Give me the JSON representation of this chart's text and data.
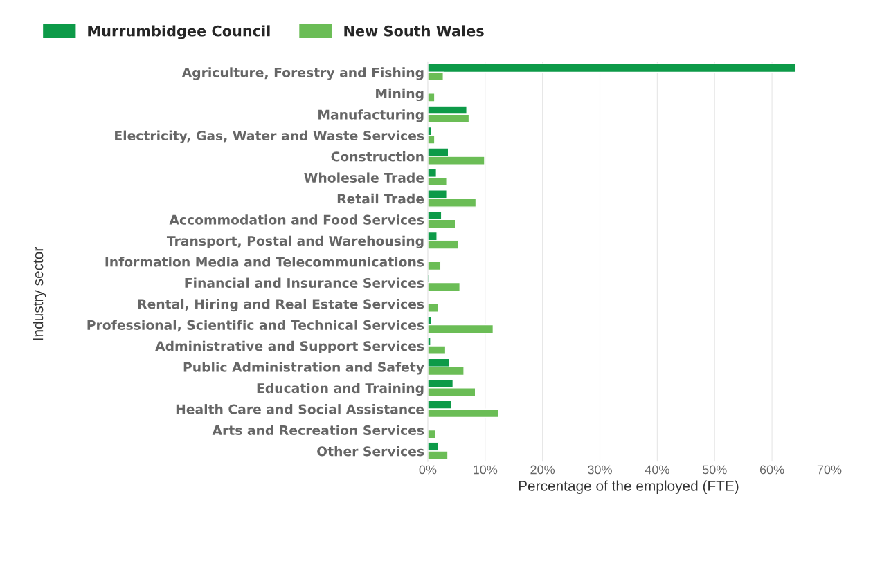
{
  "chart_data": {
    "type": "bar",
    "orientation": "horizontal",
    "xlabel": "Percentage of the employed (FTE)",
    "ylabel": "Industry sector",
    "categories": [
      "Agriculture, Forestry and Fishing",
      "Mining",
      "Manufacturing",
      "Electricity, Gas, Water and Waste Services",
      "Construction",
      "Wholesale Trade",
      "Retail Trade",
      "Accommodation and Food Services",
      "Transport, Postal and Warehousing",
      "Information Media and Telecommunications",
      "Financial and Insurance Services",
      "Rental, Hiring and Real Estate Services",
      "Professional, Scientific and Technical Services",
      "Administrative and Support Services",
      "Public Administration and Safety",
      "Education and Training",
      "Health Care and Social Assistance",
      "Arts and Recreation Services",
      "Other Services"
    ],
    "series": [
      {
        "name": "Murrumbidgee Council",
        "color": "#0d9a48",
        "values": [
          64.1,
          null,
          6.8,
          0.7,
          3.6,
          1.5,
          3.3,
          2.4,
          1.6,
          null,
          0.3,
          null,
          0.6,
          0.5,
          3.8,
          4.4,
          4.2,
          null,
          1.9
        ]
      },
      {
        "name": "New South Wales",
        "color": "#6bbd56",
        "values": [
          2.7,
          1.2,
          7.2,
          1.2,
          9.9,
          3.3,
          8.4,
          4.8,
          5.4,
          2.2,
          5.6,
          1.9,
          11.4,
          3.1,
          6.3,
          8.3,
          12.3,
          1.4,
          3.5
        ]
      }
    ],
    "xlim": [
      0,
      70
    ],
    "xticks": [
      {
        "value": 0,
        "label": "0%"
      },
      {
        "value": 10,
        "label": "10%"
      },
      {
        "value": 20,
        "label": "20%"
      },
      {
        "value": 30,
        "label": "30%"
      },
      {
        "value": 40,
        "label": "40%"
      },
      {
        "value": 50,
        "label": "50%"
      },
      {
        "value": 60,
        "label": "60%"
      },
      {
        "value": 70,
        "label": "70%"
      }
    ],
    "grid": "x",
    "legend": "top left"
  }
}
